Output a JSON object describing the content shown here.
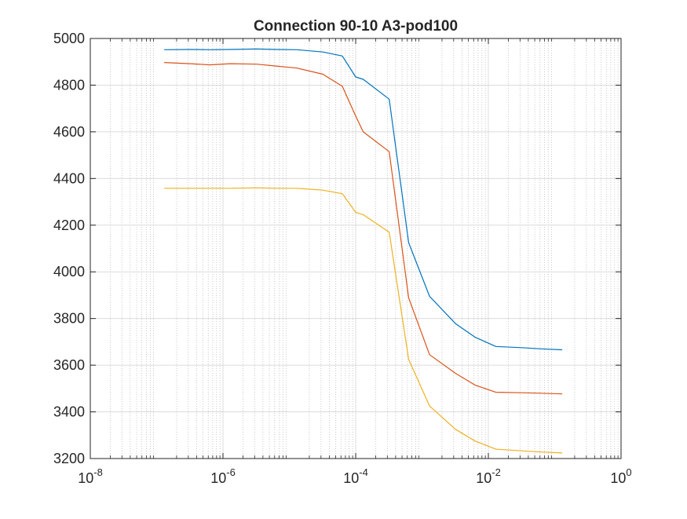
{
  "chart_data": {
    "type": "line",
    "title": "Connection 90-10 A3-pod100",
    "xlabel": "",
    "ylabel": "",
    "xscale": "log",
    "xlim": [
      1e-08,
      1
    ],
    "ylim": [
      3200,
      5000
    ],
    "grid": true,
    "minor_grid": true,
    "xticks": [
      {
        "base": "10",
        "exp": "-8"
      },
      {
        "base": "10",
        "exp": "-6"
      },
      {
        "base": "10",
        "exp": "-4"
      },
      {
        "base": "10",
        "exp": "-2"
      },
      {
        "base": "10",
        "exp": "0"
      }
    ],
    "yticks": [
      "3200",
      "3400",
      "3600",
      "3800",
      "4000",
      "4200",
      "4400",
      "4600",
      "4800",
      "5000"
    ],
    "x": [
      1.3e-07,
      3.2e-07,
      6.3e-07,
      1.3e-06,
      3.2e-06,
      6.3e-06,
      1.3e-05,
      3.2e-05,
      6.3e-05,
      0.0001,
      0.00013,
      0.00032,
      0.00063,
      0.0013,
      0.0032,
      0.0063,
      0.013,
      0.032,
      0.063,
      0.13
    ],
    "series": [
      {
        "color": "#0072BD",
        "values": [
          4952,
          4953,
          4952,
          4953,
          4955,
          4953,
          4952,
          4942,
          4925,
          4835,
          4825,
          4740,
          4125,
          3895,
          3778,
          3720,
          3680,
          3675,
          3670,
          3666
        ]
      },
      {
        "color": "#D95319",
        "values": [
          4897,
          4892,
          4887,
          4892,
          4890,
          4882,
          4873,
          4847,
          4795,
          4668,
          4600,
          4515,
          3888,
          3645,
          3565,
          3515,
          3484,
          3482,
          3480,
          3477
        ]
      },
      {
        "color": "#EDB120",
        "values": [
          4358,
          4358,
          4358,
          4358,
          4360,
          4358,
          4358,
          4350,
          4335,
          4255,
          4245,
          4170,
          3625,
          3425,
          3325,
          3275,
          3240,
          3233,
          3228,
          3224
        ]
      }
    ]
  }
}
